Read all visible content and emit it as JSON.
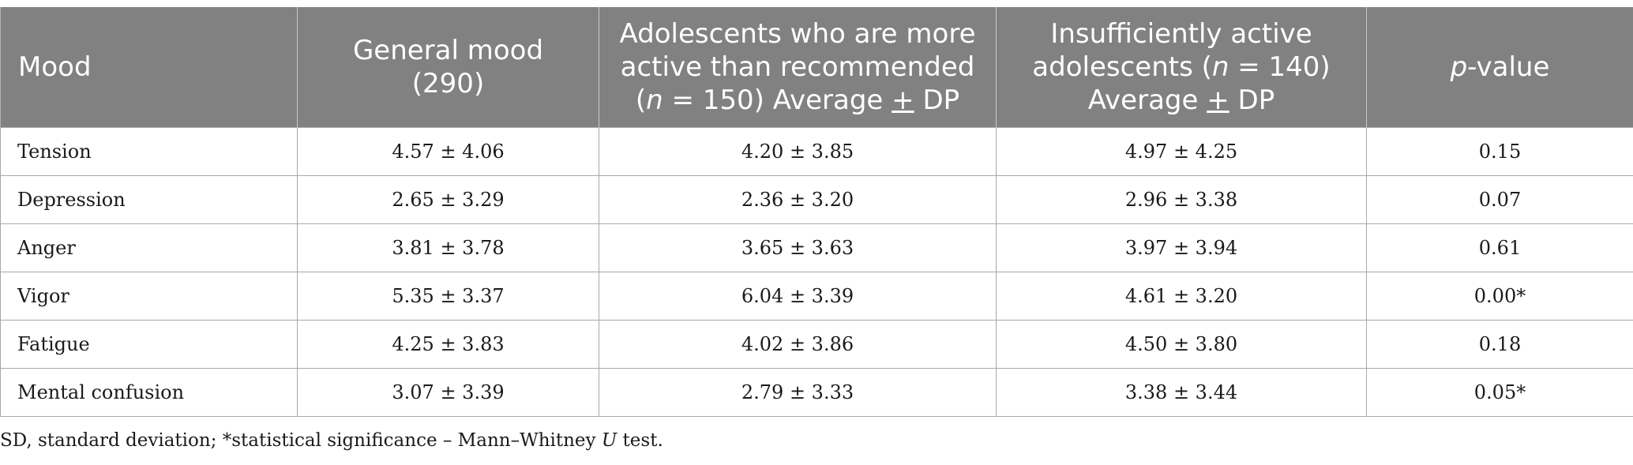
{
  "header": {
    "mood": "Mood",
    "general_line1": "General mood",
    "general_line2": "(290)",
    "active_line1": "Adolescents who are more",
    "active_line2": "active than recommended",
    "active_n_open": "(",
    "active_n": "n",
    "active_n_rest": " = 150) Average ",
    "active_pm": "+",
    "active_dp": " DP",
    "insuff_line1": "Insufficiently active",
    "insuff_line2a": "adolescents (",
    "insuff_n": "n",
    "insuff_line2b": " = 140)",
    "insuff_line3a": "Average ",
    "insuff_pm": "+",
    "insuff_line3b": " DP",
    "p_italic": "p",
    "p_rest": "-value"
  },
  "rows": [
    {
      "mood": "Tension",
      "general": "4.57 ± 4.06",
      "active": "4.20 ± 3.85",
      "insufficient": "4.97 ± 4.25",
      "p": "0.15"
    },
    {
      "mood": "Depression",
      "general": "2.65 ± 3.29",
      "active": "2.36 ± 3.20",
      "insufficient": "2.96 ± 3.38",
      "p": "0.07"
    },
    {
      "mood": "Anger",
      "general": "3.81 ± 3.78",
      "active": "3.65 ± 3.63",
      "insufficient": "3.97 ± 3.94",
      "p": "0.61"
    },
    {
      "mood": "Vigor",
      "general": "5.35 ± 3.37",
      "active": "6.04 ± 3.39",
      "insufficient": "4.61 ± 3.20",
      "p": "0.00*"
    },
    {
      "mood": "Fatigue",
      "general": "4.25 ± 3.83",
      "active": "4.02 ± 3.86",
      "insufficient": "4.50 ± 3.80",
      "p": "0.18"
    },
    {
      "mood": "Mental confusion",
      "general": "3.07 ± 3.39",
      "active": "2.79 ± 3.33",
      "insufficient": "3.38 ± 3.44",
      "p": "0.05*"
    }
  ],
  "footnote": {
    "text_before": "SD, standard deviation; *statistical significance – Mann–Whitney ",
    "u_italic": "U",
    "text_after": " test."
  }
}
